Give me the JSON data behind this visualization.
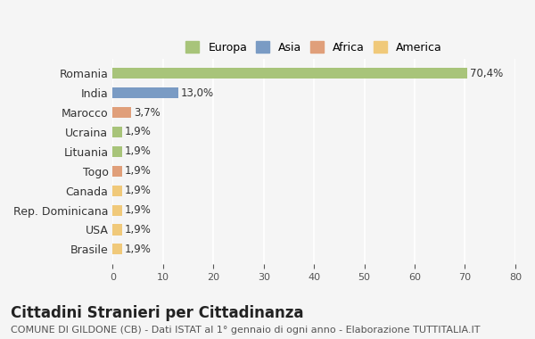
{
  "categories": [
    "Brasile",
    "USA",
    "Rep. Dominicana",
    "Canada",
    "Togo",
    "Lituania",
    "Ucraina",
    "Marocco",
    "India",
    "Romania"
  ],
  "values": [
    1.9,
    1.9,
    1.9,
    1.9,
    1.9,
    1.9,
    1.9,
    3.7,
    13.0,
    70.4
  ],
  "labels": [
    "1,9%",
    "1,9%",
    "1,9%",
    "1,9%",
    "1,9%",
    "1,9%",
    "1,9%",
    "3,7%",
    "13,0%",
    "70,4%"
  ],
  "colors": [
    "#f0c97a",
    "#f0c97a",
    "#f0c97a",
    "#f0c97a",
    "#e09f7a",
    "#a8c47a",
    "#a8c47a",
    "#e09f7a",
    "#7a9bc4",
    "#a8c47a"
  ],
  "legend": [
    {
      "label": "Europa",
      "color": "#a8c47a"
    },
    {
      "label": "Asia",
      "color": "#7a9bc4"
    },
    {
      "label": "Africa",
      "color": "#e09f7a"
    },
    {
      "label": "America",
      "color": "#f0c97a"
    }
  ],
  "xlim": [
    0,
    80
  ],
  "xticks": [
    0,
    10,
    20,
    30,
    40,
    50,
    60,
    70,
    80
  ],
  "title": "Cittadini Stranieri per Cittadinanza",
  "subtitle": "COMUNE DI GILDONE (CB) - Dati ISTAT al 1° gennaio di ogni anno - Elaborazione TUTTITALIA.IT",
  "bg_color": "#f5f5f5",
  "bar_height": 0.55,
  "label_fontsize": 8.5,
  "title_fontsize": 12,
  "subtitle_fontsize": 8
}
